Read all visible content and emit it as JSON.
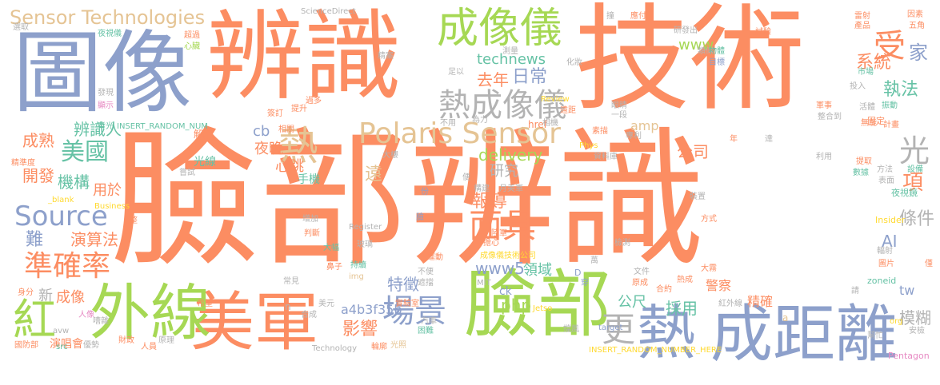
{
  "palette": {
    "orange": "#fc8d62",
    "blue": "#8da0cb",
    "green": "#a6d854",
    "teal": "#66c2a5",
    "pink": "#e78ac3",
    "yellow": "#ffd92f",
    "tan": "#e5c494",
    "gray": "#b3b3b3"
  },
  "words": [
    {
      "text": "臉部辨識",
      "color": "#fc8d62"
    },
    {
      "text": "技術",
      "color": "#fc8d62"
    },
    {
      "text": "辨識",
      "color": "#fc8d62"
    },
    {
      "text": "圖像",
      "color": "#8da0cb"
    },
    {
      "text": "臉部",
      "color": "#a6d854"
    },
    {
      "text": "美軍",
      "color": "#fc8d62"
    },
    {
      "text": "成距離",
      "color": "#8da0cb"
    },
    {
      "text": "外線",
      "color": "#a6d854"
    },
    {
      "text": "紅",
      "color": "#a6d854"
    },
    {
      "text": "熱",
      "color": "#8da0cb"
    },
    {
      "text": "成像儀",
      "color": "#a6d854"
    },
    {
      "text": "熱成像儀",
      "color": "#b3b3b3"
    },
    {
      "text": "Polaris Sensor",
      "color": "#e5c494"
    },
    {
      "text": "Sensor Technologies",
      "color": "#e5c494"
    },
    {
      "text": "Source",
      "color": "#8da0cb"
    },
    {
      "text": "準確率",
      "color": "#fc8d62"
    },
    {
      "text": "美國",
      "color": "#66c2a5"
    },
    {
      "text": "場景",
      "color": "#8da0cb"
    },
    {
      "text": "面具",
      "color": "#fc8d62"
    },
    {
      "text": "更",
      "color": "#b3b3b3"
    },
    {
      "text": "熱",
      "color": "#e5c494"
    },
    {
      "text": "光",
      "color": "#b3b3b3"
    },
    {
      "text": "受",
      "color": "#fc8d62"
    },
    {
      "text": "家",
      "color": "#8da0cb"
    },
    {
      "text": "項",
      "color": "#fc8d62"
    },
    {
      "text": "執法",
      "color": "#66c2a5"
    },
    {
      "text": "系統",
      "color": "#fc8d62"
    },
    {
      "text": "www",
      "color": "#a6d854"
    },
    {
      "text": "technews",
      "color": "#66c2a5"
    },
    {
      "text": "去年",
      "color": "#fc8d62"
    },
    {
      "text": "日常",
      "color": "#8da0cb"
    },
    {
      "text": "辨識人",
      "color": "#66c2a5"
    },
    {
      "text": "美國",
      "color": "#66c2a5"
    },
    {
      "text": "cb",
      "color": "#8da0cb"
    },
    {
      "text": "夜晚",
      "color": "#fc8d62"
    },
    {
      "text": "心跳",
      "color": "#fc8d62"
    },
    {
      "text": "遠",
      "color": "#e5c494"
    },
    {
      "text": "amp",
      "color": "#e5c494"
    },
    {
      "text": "delivery",
      "color": "#a6d854"
    },
    {
      "text": "研究",
      "color": "#b3b3b3"
    },
    {
      "text": "公司",
      "color": "#fc8d62"
    },
    {
      "text": "報導",
      "color": "#fc8d62"
    },
    {
      "text": "機構",
      "color": "#66c2a5"
    },
    {
      "text": "開發",
      "color": "#fc8d62"
    },
    {
      "text": "用於",
      "color": "#fc8d62"
    },
    {
      "text": "演算法",
      "color": "#fc8d62"
    },
    {
      "text": "難",
      "color": "#8da0cb"
    },
    {
      "text": "成熟",
      "color": "#fc8d62"
    },
    {
      "text": "特徵",
      "color": "#8da0cb"
    },
    {
      "text": "www5",
      "color": "#8da0cb"
    },
    {
      "text": "領域",
      "color": "#66c2a5"
    },
    {
      "text": "php",
      "color": "#a6d854"
    },
    {
      "text": "公尺",
      "color": "#66c2a5"
    },
    {
      "text": "採用",
      "color": "#66c2a5"
    },
    {
      "text": "影響",
      "color": "#fc8d62"
    },
    {
      "text": "a4b3f35b",
      "color": "#8da0cb"
    },
    {
      "text": "條件",
      "color": "#b3b3b3"
    },
    {
      "text": "AI",
      "color": "#8da0cb"
    },
    {
      "text": "模糊",
      "color": "#b3b3b3"
    },
    {
      "text": "tw",
      "color": "#8da0cb"
    },
    {
      "text": "精確",
      "color": "#fc8d62"
    },
    {
      "text": "警察",
      "color": "#fc8d62"
    },
    {
      "text": "新",
      "color": "#b3b3b3"
    },
    {
      "text": "成像",
      "color": "#fc8d62"
    },
    {
      "text": "演唱會",
      "color": "#fc8d62"
    },
    {
      "text": "手機",
      "color": "#66c2a5"
    },
    {
      "text": "光線",
      "color": "#66c2a5"
    },
    {
      "text": "ScienceDirect",
      "color": "#b3b3b3"
    },
    {
      "text": "INSERT_RANDOM_NUM",
      "color": "#66c2a5"
    },
    {
      "text": "INSERT_RANDOM_NUMBER_HERE",
      "color": "#ffd92f"
    },
    {
      "text": "Register",
      "color": "#b3b3b3"
    },
    {
      "text": "Pentagon",
      "color": "#e78ac3"
    },
    {
      "text": "Insider",
      "color": "#ffd92f"
    },
    {
      "text": "Business",
      "color": "#ffd92f"
    },
    {
      "text": "_blank",
      "color": "#ffd92f"
    },
    {
      "text": "Review",
      "color": "#ffd92f"
    },
    {
      "text": "Jetso",
      "color": "#ffd92f"
    },
    {
      "text": "target",
      "color": "#8da0cb"
    },
    {
      "text": "Technology",
      "color": "#b3b3b3"
    },
    {
      "text": "href",
      "color": "#fc8d62"
    },
    {
      "text": "Phys",
      "color": "#ffd92f"
    },
    {
      "text": "MIT",
      "color": "#b3b3b3"
    },
    {
      "text": "img",
      "color": "#e5c494"
    },
    {
      "text": "zoneid",
      "color": "#66c2a5"
    },
    {
      "text": "org",
      "color": "#ffd92f"
    },
    {
      "text": "src",
      "color": "#66c2a5"
    },
    {
      "text": "avw",
      "color": "#b3b3b3"
    },
    {
      "text": "ck",
      "color": "#8da0cb"
    },
    {
      "text": "n",
      "color": "#b3b3b3"
    },
    {
      "text": "a",
      "color": "#e5c494"
    },
    {
      "text": "D",
      "color": "#8da0cb"
    },
    {
      "text": "成像儀技術公司",
      "color": "#ffd92f"
    },
    {
      "text": "選取",
      "color": "#b3b3b3"
    },
    {
      "text": "夜視儀",
      "color": "#66c2a5"
    },
    {
      "text": "超過",
      "color": "#fc8d62"
    },
    {
      "text": "心臟",
      "color": "#a6d854"
    },
    {
      "text": "發現",
      "color": "#b3b3b3"
    },
    {
      "text": "顯示",
      "color": "#e78ac3"
    },
    {
      "text": "背光",
      "color": "#66c2a5"
    },
    {
      "text": "精準度",
      "color": "#fc8d62"
    },
    {
      "text": "運動",
      "color": "#fc8d62"
    },
    {
      "text": "類似",
      "color": "#b3b3b3"
    },
    {
      "text": "目標",
      "color": "#8da0cb"
    },
    {
      "text": "物體",
      "color": "#66c2a5"
    },
    {
      "text": "市場",
      "color": "#66c2a5"
    },
    {
      "text": "投入",
      "color": "#b3b3b3"
    },
    {
      "text": "活體",
      "color": "#b3b3b3"
    },
    {
      "text": "振動",
      "color": "#66c2a5"
    },
    {
      "text": "固定",
      "color": "#fc8d62"
    },
    {
      "text": "無能",
      "color": "#fc8d62"
    },
    {
      "text": "計畫",
      "color": "#fc8d62"
    },
    {
      "text": "軍事",
      "color": "#fc8d62"
    },
    {
      "text": "整合到",
      "color": "#b3b3b3"
    },
    {
      "text": "眼睛",
      "color": "#b3b3b3"
    },
    {
      "text": "一段",
      "color": "#b3b3b3"
    },
    {
      "text": "專利",
      "color": "#b3b3b3"
    },
    {
      "text": "素描",
      "color": "#fc8d62"
    },
    {
      "text": "資料庫",
      "color": "#b3b3b3"
    },
    {
      "text": "相機",
      "color": "#b3b3b3"
    },
    {
      "text": "為力",
      "color": "#b3b3b3"
    },
    {
      "text": "不用",
      "color": "#b3b3b3"
    },
    {
      "text": "提取",
      "color": "#fc8d62"
    },
    {
      "text": "數據",
      "color": "#66c2a5"
    },
    {
      "text": "利用",
      "color": "#b3b3b3"
    },
    {
      "text": "方法",
      "color": "#b3b3b3"
    },
    {
      "text": "表面",
      "color": "#b3b3b3"
    },
    {
      "text": "設備",
      "color": "#66c2a5"
    },
    {
      "text": "夜視鏡",
      "color": "#66c2a5"
    },
    {
      "text": "裝置",
      "color": "#b3b3b3"
    },
    {
      "text": "方式",
      "color": "#fc8d62"
    },
    {
      "text": "輻射",
      "color": "#b3b3b3"
    },
    {
      "text": "圖片",
      "color": "#fc8d62"
    },
    {
      "text": "檢測",
      "color": "#b3b3b3"
    },
    {
      "text": "文件",
      "color": "#b3b3b3"
    },
    {
      "text": "原成",
      "color": "#fc8d62"
    },
    {
      "text": "合約",
      "color": "#fc8d62"
    },
    {
      "text": "熱成",
      "color": "#fc8d62"
    },
    {
      "text": "大霧",
      "color": "#fc8d62"
    },
    {
      "text": "紅外線",
      "color": "#b3b3b3"
    },
    {
      "text": "擋風",
      "color": "#b3b3b3"
    },
    {
      "text": "幫忙",
      "color": "#b3b3b3"
    },
    {
      "text": "安檢",
      "color": "#b3b3b3"
    },
    {
      "text": "國防部",
      "color": "#fc8d62"
    },
    {
      "text": "優勢",
      "color": "#b3b3b3"
    },
    {
      "text": "財政",
      "color": "#fc8d62"
    },
    {
      "text": "人員",
      "color": "#fc8d62"
    },
    {
      "text": "原理",
      "color": "#b3b3b3"
    },
    {
      "text": "光照",
      "color": "#e5c494"
    },
    {
      "text": "困難",
      "color": "#66c2a5"
    },
    {
      "text": "輪廓",
      "color": "#fc8d62"
    },
    {
      "text": "汽車",
      "color": "#b3b3b3"
    },
    {
      "text": "實驗室",
      "color": "#fc8d62"
    },
    {
      "text": "美元",
      "color": "#b3b3b3"
    },
    {
      "text": "合成",
      "color": "#b3b3b3"
    },
    {
      "text": "希望",
      "color": "#fc8d62"
    },
    {
      "text": "嘈雜",
      "color": "#b3b3b3"
    },
    {
      "text": "人像",
      "color": "#e78ac3"
    },
    {
      "text": "身分",
      "color": "#fc8d62"
    },
    {
      "text": "常見",
      "color": "#b3b3b3"
    },
    {
      "text": "判斷",
      "color": "#fc8d62"
    },
    {
      "text": "增加",
      "color": "#b3b3b3"
    },
    {
      "text": "大幅",
      "color": "#66c2a5"
    },
    {
      "text": "不便",
      "color": "#b3b3b3"
    },
    {
      "text": "遮擋",
      "color": "#b3b3b3"
    },
    {
      "text": "鼻子",
      "color": "#fc8d62"
    },
    {
      "text": "持續",
      "color": "#66c2a5"
    },
    {
      "text": "擔心",
      "color": "#fc8d62"
    },
    {
      "text": "陸軍",
      "color": "#fc8d62"
    },
    {
      "text": "構建",
      "color": "#b3b3b3"
    },
    {
      "text": "月美軍",
      "color": "#b3b3b3"
    },
    {
      "text": "大樓",
      "color": "#b3b3b3"
    },
    {
      "text": "玻璃",
      "color": "#b3b3b3"
    },
    {
      "text": "簽訂",
      "color": "#fc8d62"
    },
    {
      "text": "過多",
      "color": "#fc8d62"
    },
    {
      "text": "提升",
      "color": "#fc8d62"
    },
    {
      "text": "相關",
      "color": "#fc8d62"
    },
    {
      "text": "解讀",
      "color": "#fc8d62"
    },
    {
      "text": "嘗試",
      "color": "#b3b3b3"
    },
    {
      "text": "精案",
      "color": "#b3b3b3"
    },
    {
      "text": "足以",
      "color": "#b3b3b3"
    },
    {
      "text": "測量",
      "color": "#b3b3b3"
    },
    {
      "text": "化妝",
      "color": "#b3b3b3"
    },
    {
      "text": "遠距",
      "color": "#fc8d62"
    },
    {
      "text": "研發出",
      "color": "#b3b3b3"
    },
    {
      "text": "試驗",
      "color": "#fc8d62"
    },
    {
      "text": "產品",
      "color": "#fc8d62"
    },
    {
      "text": "雷射",
      "color": "#fc8d62"
    },
    {
      "text": "因素",
      "color": "#fc8d62"
    },
    {
      "text": "五角",
      "color": "#fc8d62"
    },
    {
      "text": "應付",
      "color": "#fc8d62"
    },
    {
      "text": "撞",
      "color": "#b3b3b3"
    },
    {
      "text": "份",
      "color": "#8da0cb"
    },
    {
      "text": "整",
      "color": "#fc8d62"
    },
    {
      "text": "穿",
      "color": "#8da0cb"
    },
    {
      "text": "萬",
      "color": "#b3b3b3"
    },
    {
      "text": "請",
      "color": "#b3b3b3"
    },
    {
      "text": "達",
      "color": "#b3b3b3"
    },
    {
      "text": "年",
      "color": "#fc8d62"
    },
    {
      "text": "僅",
      "color": "#fc8d62"
    },
    {
      "text": "便",
      "color": "#b3b3b3"
    },
    {
      "text": "臉",
      "color": "#8da0cb"
    }
  ]
}
